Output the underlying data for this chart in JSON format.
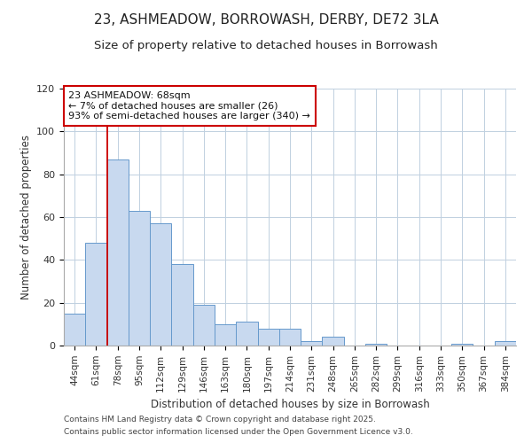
{
  "title": "23, ASHMEADOW, BORROWASH, DERBY, DE72 3LA",
  "subtitle": "Size of property relative to detached houses in Borrowash",
  "xlabel": "Distribution of detached houses by size in Borrowash",
  "ylabel": "Number of detached properties",
  "bar_labels": [
    "44sqm",
    "61sqm",
    "78sqm",
    "95sqm",
    "112sqm",
    "129sqm",
    "146sqm",
    "163sqm",
    "180sqm",
    "197sqm",
    "214sqm",
    "231sqm",
    "248sqm",
    "265sqm",
    "282sqm",
    "299sqm",
    "316sqm",
    "333sqm",
    "350sqm",
    "367sqm",
    "384sqm"
  ],
  "bar_values": [
    15,
    48,
    87,
    63,
    57,
    38,
    19,
    10,
    11,
    8,
    8,
    2,
    4,
    0,
    1,
    0,
    0,
    0,
    1,
    0,
    2
  ],
  "bar_color": "#c8d9ef",
  "bar_edge_color": "#6699cc",
  "ylim": [
    0,
    120
  ],
  "yticks": [
    0,
    20,
    40,
    60,
    80,
    100,
    120
  ],
  "annotation_line1": "23 ASHMEADOW: 68sqm",
  "annotation_line2": "← 7% of detached houses are smaller (26)",
  "annotation_line3": "93% of semi-detached houses are larger (340) →",
  "vline_x": 1.5,
  "vline_color": "#cc0000",
  "footer_line1": "Contains HM Land Registry data © Crown copyright and database right 2025.",
  "footer_line2": "Contains public sector information licensed under the Open Government Licence v3.0.",
  "background_color": "#ffffff",
  "grid_color": "#c0d0e0",
  "title_fontsize": 11,
  "subtitle_fontsize": 9.5,
  "axis_label_fontsize": 8.5,
  "tick_fontsize": 7.5,
  "annotation_fontsize": 8,
  "footer_fontsize": 6.5
}
